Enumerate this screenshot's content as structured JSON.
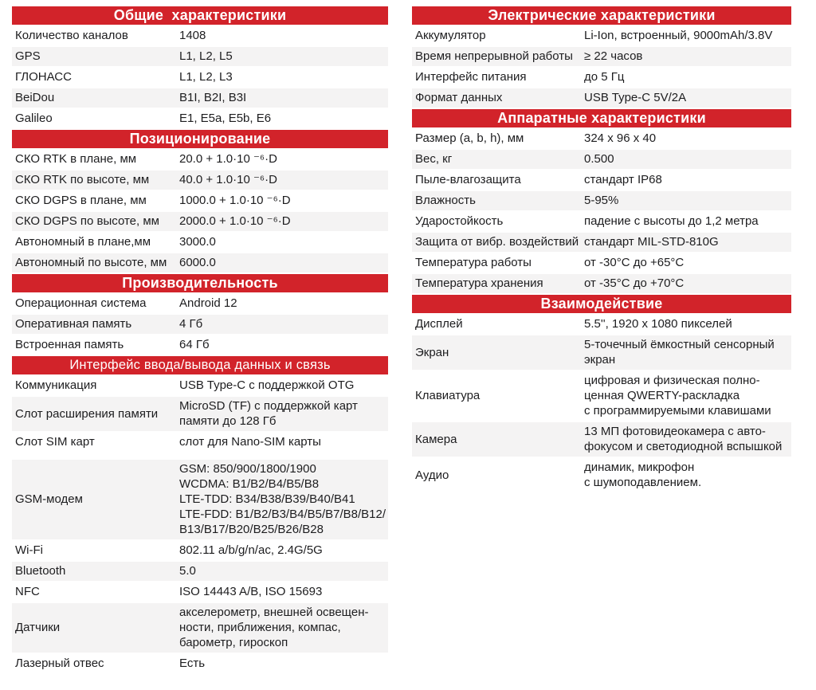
{
  "colors": {
    "accent_red": "#d2232a",
    "row_alt": "#f4f3f3",
    "text": "#1d1d1f",
    "header_text": "#ffffff"
  },
  "left_column": {
    "sections": [
      {
        "title": "Общие  характеристики",
        "style": "bold",
        "rows": [
          {
            "label": "Количество каналов",
            "value": "1408"
          },
          {
            "label": "GPS",
            "value": "L1, L2, L5"
          },
          {
            "label": "ГЛОНАСС",
            "value": "L1, L2, L3"
          },
          {
            "label": "BeiDou",
            "value": "B1I, B2I, B3I"
          },
          {
            "label": "Galileo",
            "value": "E1, E5a, E5b, E6"
          }
        ]
      },
      {
        "title": "Позиционирование",
        "style": "bold",
        "rows": [
          {
            "label": "СКО RTK в плане, мм",
            "value": "20.0 + 1.0·10 ⁻⁶·D"
          },
          {
            "label": "СКО RTK по высоте, мм",
            "value": "40.0 + 1.0·10 ⁻⁶·D"
          },
          {
            "label": "СКО DGPS в плане, мм",
            "value": "1000.0 + 1.0·10 ⁻⁶·D"
          },
          {
            "label": "СКО DGPS по высоте, мм",
            "value": "2000.0 + 1.0·10 ⁻⁶·D"
          },
          {
            "label": "Автономный в плане,мм",
            "value": "3000.0"
          },
          {
            "label": "Автономный по высоте, мм",
            "value": "6000.0"
          }
        ]
      },
      {
        "title": "Производительность",
        "style": "bold",
        "rows": [
          {
            "label": "Операционная система",
            "value": "Android 12"
          },
          {
            "label": "Оперативная память",
            "value": "4 Гб"
          },
          {
            "label": "Встроенная память",
            "value": "64 Гб"
          }
        ]
      },
      {
        "title": "Интерфейс ввода/вывода данных и связь",
        "style": "light",
        "rows": [
          {
            "label": "Коммуникация",
            "value": "USB Type-C с поддержкой OTG"
          },
          {
            "label": "Слот расширения памяти",
            "value": "MicroSD (TF) с поддержкой карт\nпамяти до 128 Гб"
          },
          {
            "label": "Слот SIM карт",
            "value": "слот для Nano-SIM карты",
            "gap_after": true
          },
          {
            "label": "GSM-модем",
            "value": "GSM: 850/900/1800/1900\nWCDMA: B1/B2/B4/B5/B8\nLTE-TDD: B34/B38/B39/B40/B41\nLTE-FDD: B1/B2/B3/B4/B5/B7/B8/B12/\nB13/B17/B20/B25/B26/B28"
          },
          {
            "label": "Wi-Fi",
            "value": "802.11 a/b/g/n/ac, 2.4G/5G"
          },
          {
            "label": "Bluetooth",
            "value": "5.0"
          },
          {
            "label": "NFC",
            "value": "ISO 14443 A/B, ISO 15693"
          },
          {
            "label": "Датчики",
            "value": "акселерометр, внешней освещен-\nности, приближения, компас,\nбарометр, гироскоп"
          },
          {
            "label": "Лазерный отвес",
            "value": "Есть"
          }
        ]
      }
    ]
  },
  "right_column": {
    "sections": [
      {
        "title": "Электрические характеристики",
        "style": "bold",
        "rows": [
          {
            "label": "Аккумулятор",
            "value": "Li-Ion, встроенный, 9000mAh/3.8V"
          },
          {
            "label": "Время непрерывной работы",
            "value": "≥ 22 часов"
          },
          {
            "label": "Интерфейс питания",
            "value": "до 5 Гц"
          },
          {
            "label": "Формат данных",
            "value": "USB Type-C 5V/2A"
          }
        ]
      },
      {
        "title": "Аппаратные характеристики",
        "style": "bold",
        "rows": [
          {
            "label": "Размер (a, b, h), мм",
            "value": "324 x 96 x 40"
          },
          {
            "label": "Вес, кг",
            "value": "0.500"
          },
          {
            "label": "Пыле-влагозащита",
            "value": "стандарт IP68"
          },
          {
            "label": "Влажность",
            "value": "5-95%"
          },
          {
            "label": "Ударостойкость",
            "value": "падение с высоты до 1,2 метра"
          },
          {
            "label": "Защита от вибр. воздействий",
            "value": "стандарт MIL-STD-810G"
          },
          {
            "label": "Температура работы",
            "value": "от -30°C до +65°C"
          },
          {
            "label": "Температура хранения",
            "value": "от -35°C до +70°C"
          }
        ]
      },
      {
        "title": "Взаимодействие",
        "style": "bold",
        "rows": [
          {
            "label": "Дисплей",
            "value": "5.5'',  1920 x 1080 пикселей"
          },
          {
            "label": "Экран",
            "value": "5-точечный ёмкостный сенсорный\nэкран"
          },
          {
            "label": "Клавиатура",
            "value": "цифровая и физическая полно-\nценная QWERTY-раскладка\nс программируемыми клавишами"
          },
          {
            "label": "Камера",
            "value": "13 МП фотовидеокамера с авто-\nфокусом и светодиодной вспышкой"
          },
          {
            "label": "Аудио",
            "value": "динамик, микрофон\nс шумоподавлением."
          }
        ]
      }
    ]
  }
}
